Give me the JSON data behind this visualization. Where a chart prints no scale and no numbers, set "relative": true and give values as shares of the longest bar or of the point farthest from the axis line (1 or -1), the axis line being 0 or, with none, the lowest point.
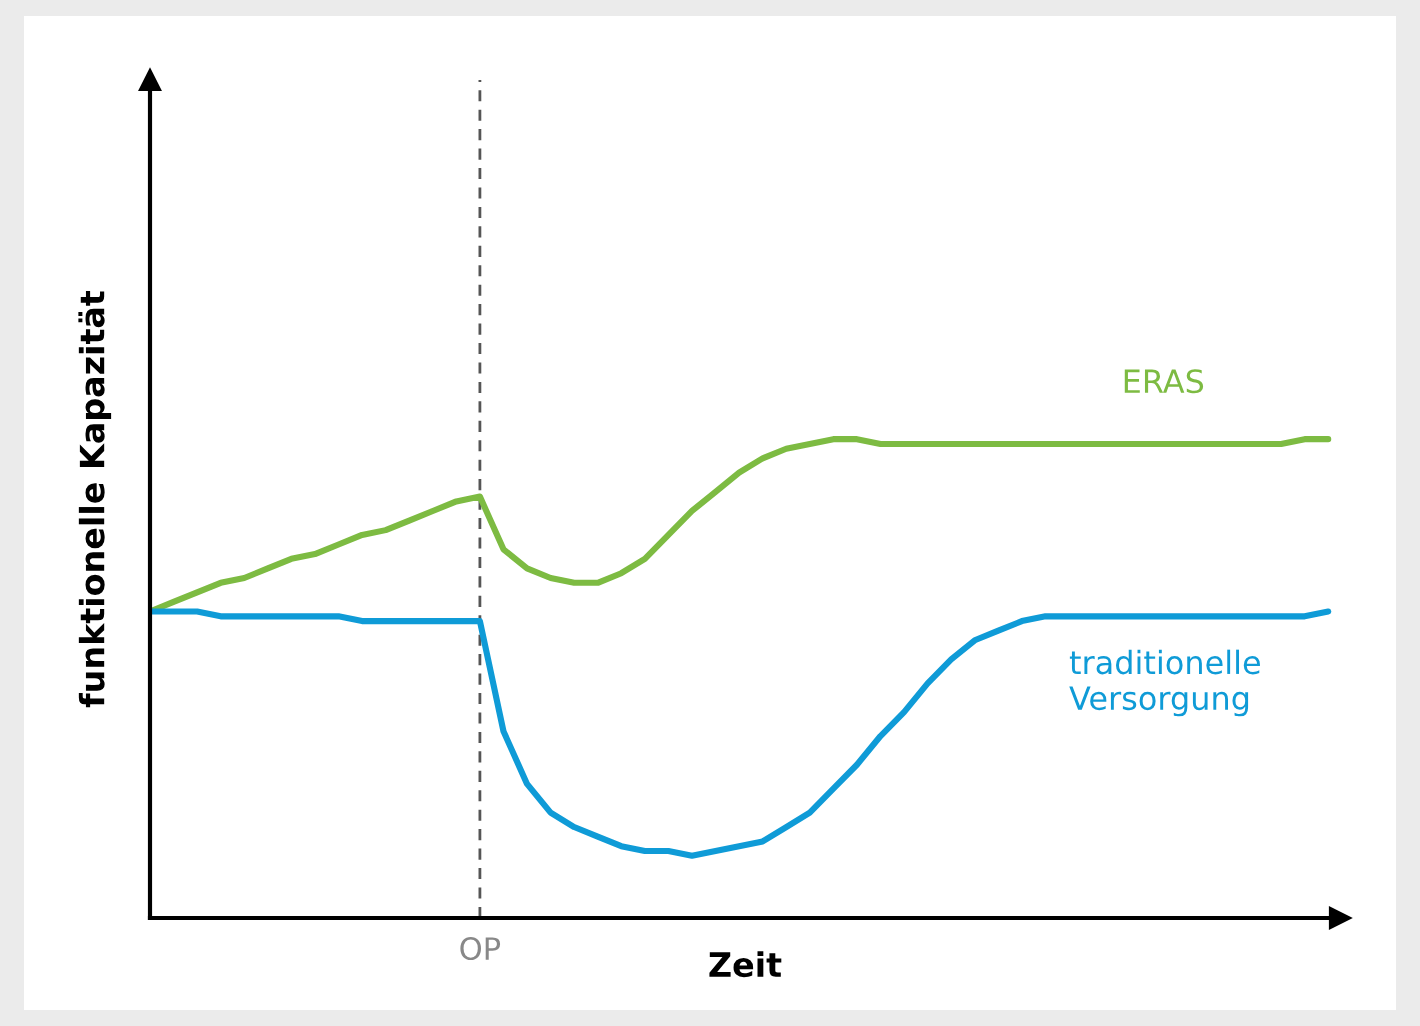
{
  "chart_data": {
    "type": "line",
    "relative": true,
    "xlabel": "Zeit",
    "ylabel": "funktionelle Kapazität",
    "legend": false,
    "marker": "none",
    "line_style": "solid",
    "categories": [
      null,
      null,
      null,
      null,
      null,
      null,
      null,
      null,
      null,
      null,
      null,
      null,
      null,
      null,
      null,
      null,
      null,
      null,
      null,
      null,
      null,
      null,
      null,
      null,
      null,
      null,
      null,
      null,
      null,
      null,
      null,
      null,
      null,
      null,
      null,
      null,
      null,
      null,
      null,
      null,
      null,
      null,
      null,
      null,
      null,
      null,
      null,
      null,
      null,
      null,
      null
    ],
    "series": [
      {
        "name": "ERAS",
        "color": "#7dbb42",
        "values": [
          0.64,
          0.66,
          0.68,
          0.7,
          0.71,
          0.73,
          0.75,
          0.76,
          0.78,
          0.8,
          0.81,
          0.83,
          0.85,
          0.87,
          0.88,
          0.77,
          0.73,
          0.71,
          0.7,
          0.7,
          0.72,
          0.75,
          0.8,
          0.85,
          0.89,
          0.93,
          0.96,
          0.98,
          0.99,
          1.0,
          1.0,
          0.99,
          0.99,
          0.99,
          0.99,
          0.99,
          0.99,
          0.99,
          0.99,
          0.99,
          0.99,
          0.99,
          0.99,
          0.99,
          0.99,
          0.99,
          0.99,
          0.99,
          0.99,
          1.0,
          1.0
        ]
      },
      {
        "name": "traditionelle\nVersorgung",
        "color": "#0f9bd7",
        "values": [
          0.64,
          0.64,
          0.64,
          0.63,
          0.63,
          0.63,
          0.63,
          0.63,
          0.63,
          0.62,
          0.62,
          0.62,
          0.62,
          0.62,
          0.62,
          0.39,
          0.28,
          0.22,
          0.19,
          0.17,
          0.15,
          0.14,
          0.14,
          0.13,
          0.14,
          0.15,
          0.16,
          0.19,
          0.22,
          0.27,
          0.32,
          0.38,
          0.43,
          0.49,
          0.54,
          0.58,
          0.6,
          0.62,
          0.63,
          0.63,
          0.63,
          0.63,
          0.63,
          0.63,
          0.63,
          0.63,
          0.63,
          0.63,
          0.63,
          0.63,
          0.64
        ]
      }
    ],
    "annotations": [
      "OP"
    ]
  }
}
